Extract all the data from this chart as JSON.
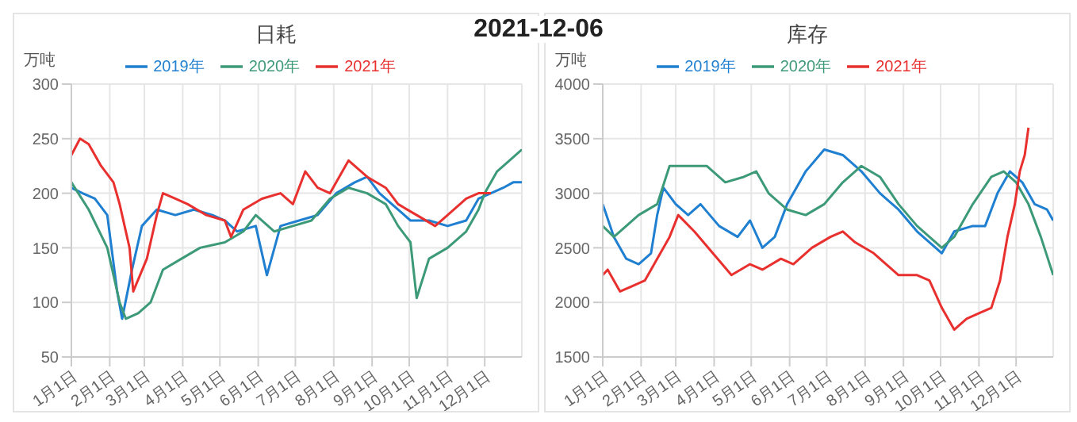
{
  "chart_data": [
    {
      "type": "line",
      "title": "日耗",
      "ylabel": "万吨",
      "annotations": [
        "2021-12-06"
      ],
      "legend": "top",
      "grid": true,
      "marker": "none",
      "line_style": "solid",
      "xlim": [
        "--01-01",
        "--12-31"
      ],
      "xticks": [
        {
          "value": "--01-01",
          "label": "1月1日"
        },
        {
          "value": "--02-01",
          "label": "2月1日"
        },
        {
          "value": "--03-01",
          "label": "3月1日"
        },
        {
          "value": "--04-01",
          "label": "4月1日"
        },
        {
          "value": "--05-01",
          "label": "5月1日"
        },
        {
          "value": "--06-01",
          "label": "6月1日"
        },
        {
          "value": "--07-01",
          "label": "7月1日"
        },
        {
          "value": "--08-01",
          "label": "8月1日"
        },
        {
          "value": "--09-01",
          "label": "9月1日"
        },
        {
          "value": "--10-01",
          "label": "10月1日"
        },
        {
          "value": "--11-01",
          "label": "11月1日"
        },
        {
          "value": "--12-01",
          "label": "12月1日"
        }
      ],
      "ylim": [
        50,
        300
      ],
      "yticks": [
        50,
        100,
        150,
        200,
        250,
        300
      ],
      "series": [
        {
          "name": "2019年",
          "color": "#1f7fd0",
          "x": [
            "--01-01",
            "--01-10",
            "--01-20",
            "--01-30",
            "--02-07",
            "--02-11",
            "--02-19",
            "--02-27",
            "--03-11",
            "--03-26",
            "--04-10",
            "--04-25",
            "--05-05",
            "--05-15",
            "--05-30",
            "--06-08",
            "--06-19",
            "--07-04",
            "--07-19",
            "--08-03",
            "--08-18",
            "--08-28",
            "--09-07",
            "--09-17",
            "--10-02",
            "--10-17",
            "--11-01",
            "--11-16",
            "--11-26",
            "--12-06",
            "--12-16",
            "--12-24",
            "--12-31"
          ],
          "values": [
            205,
            200,
            195,
            180,
            110,
            85,
            130,
            170,
            185,
            180,
            185,
            180,
            175,
            165,
            170,
            125,
            170,
            175,
            180,
            200,
            210,
            215,
            200,
            190,
            175,
            175,
            170,
            175,
            195,
            200,
            205,
            210,
            210
          ]
        },
        {
          "name": "2020年",
          "color": "#3d9a78",
          "x": [
            "--01-01",
            "--01-15",
            "--01-30",
            "--02-09",
            "--02-14",
            "--02-24",
            "--03-06",
            "--03-16",
            "--03-31",
            "--04-15",
            "--05-05",
            "--05-20",
            "--05-30",
            "--06-14",
            "--06-29",
            "--07-14",
            "--07-29",
            "--08-13",
            "--08-28",
            "--09-12",
            "--09-22",
            "--10-02",
            "--10-07",
            "--10-17",
            "--11-01",
            "--11-16",
            "--11-26",
            "--12-01",
            "--12-11",
            "--12-21",
            "--12-31"
          ],
          "values": [
            210,
            185,
            150,
            100,
            85,
            90,
            100,
            130,
            140,
            150,
            155,
            165,
            180,
            165,
            170,
            175,
            195,
            205,
            200,
            190,
            170,
            155,
            104,
            140,
            150,
            165,
            185,
            200,
            220,
            230,
            240
          ]
        },
        {
          "name": "2021年",
          "color": "#e8302e",
          "x": [
            "--01-01",
            "--01-08",
            "--01-15",
            "--01-25",
            "--02-04",
            "--02-09",
            "--02-17",
            "--02-20",
            "--03-03",
            "--03-11",
            "--03-16",
            "--03-26",
            "--04-05",
            "--04-20",
            "--05-05",
            "--05-10",
            "--05-20",
            "--06-04",
            "--06-19",
            "--06-29",
            "--07-09",
            "--07-19",
            "--07-29",
            "--08-13",
            "--08-28",
            "--09-12",
            "--09-22",
            "--10-07",
            "--10-22",
            "--11-01",
            "--11-16",
            "--11-26",
            "--12-06"
          ],
          "values": [
            235,
            250,
            245,
            225,
            210,
            190,
            150,
            110,
            140,
            180,
            200,
            195,
            190,
            180,
            175,
            160,
            185,
            195,
            200,
            190,
            220,
            205,
            200,
            230,
            215,
            205,
            190,
            180,
            170,
            180,
            195,
            200,
            200
          ]
        }
      ]
    },
    {
      "type": "line",
      "title": "库存",
      "ylabel": "万吨",
      "legend": "top",
      "grid": true,
      "marker": "none",
      "line_style": "solid",
      "xlim": [
        "--01-01",
        "--12-31"
      ],
      "xticks": [
        {
          "value": "--01-01",
          "label": "1月1日"
        },
        {
          "value": "--02-01",
          "label": "2月1日"
        },
        {
          "value": "--03-01",
          "label": "3月1日"
        },
        {
          "value": "--04-01",
          "label": "4月1日"
        },
        {
          "value": "--05-01",
          "label": "5月1日"
        },
        {
          "value": "--06-01",
          "label": "6月1日"
        },
        {
          "value": "--07-01",
          "label": "7月1日"
        },
        {
          "value": "--08-01",
          "label": "8月1日"
        },
        {
          "value": "--09-01",
          "label": "9月1日"
        },
        {
          "value": "--10-01",
          "label": "10月1日"
        },
        {
          "value": "--11-01",
          "label": "11月1日"
        },
        {
          "value": "--12-01",
          "label": "12月1日"
        }
      ],
      "ylim": [
        1500,
        4000
      ],
      "yticks": [
        1500,
        2000,
        2500,
        3000,
        3500,
        4000
      ],
      "series": [
        {
          "name": "2019年",
          "color": "#1f7fd0",
          "x": [
            "--01-01",
            "--01-10",
            "--01-20",
            "--01-30",
            "--02-09",
            "--02-14",
            "--02-19",
            "--03-01",
            "--03-11",
            "--03-21",
            "--04-05",
            "--04-20",
            "--04-30",
            "--05-10",
            "--05-20",
            "--05-30",
            "--06-14",
            "--06-29",
            "--07-14",
            "--07-29",
            "--08-13",
            "--08-28",
            "--09-12",
            "--09-27",
            "--10-02",
            "--10-12",
            "--10-27",
            "--11-06",
            "--11-16",
            "--11-26",
            "--12-06",
            "--12-16",
            "--12-26",
            "--12-31"
          ],
          "values": [
            2900,
            2600,
            2400,
            2350,
            2450,
            2800,
            3050,
            2900,
            2800,
            2900,
            2700,
            2600,
            2750,
            2500,
            2600,
            2900,
            3200,
            3400,
            3350,
            3200,
            3000,
            2850,
            2650,
            2500,
            2450,
            2650,
            2700,
            2700,
            3000,
            3200,
            3100,
            2900,
            2850,
            2750
          ]
        },
        {
          "name": "2020年",
          "color": "#3d9a78",
          "x": [
            "--01-01",
            "--01-10",
            "--01-20",
            "--01-30",
            "--02-14",
            "--02-24",
            "--03-11",
            "--03-26",
            "--04-10",
            "--04-25",
            "--05-05",
            "--05-15",
            "--05-30",
            "--06-14",
            "--06-29",
            "--07-14",
            "--07-29",
            "--08-13",
            "--08-28",
            "--09-12",
            "--09-22",
            "--10-02",
            "--10-12",
            "--10-27",
            "--11-11",
            "--11-21",
            "--12-01",
            "--12-11",
            "--12-21",
            "--12-31"
          ],
          "values": [
            2700,
            2600,
            2700,
            2800,
            2900,
            3250,
            3250,
            3250,
            3100,
            3150,
            3200,
            3000,
            2850,
            2800,
            2900,
            3100,
            3250,
            3150,
            2900,
            2700,
            2600,
            2500,
            2600,
            2900,
            3150,
            3200,
            3100,
            2900,
            2600,
            2250
          ]
        },
        {
          "name": "2021年",
          "color": "#e8302e",
          "x": [
            "--01-01",
            "--01-05",
            "--01-15",
            "--01-25",
            "--02-04",
            "--02-14",
            "--02-24",
            "--03-03",
            "--03-16",
            "--03-31",
            "--04-15",
            "--04-30",
            "--05-10",
            "--05-25",
            "--06-04",
            "--06-19",
            "--07-04",
            "--07-14",
            "--07-24",
            "--08-08",
            "--08-28",
            "--09-12",
            "--09-22",
            "--10-02",
            "--10-12",
            "--10-22",
            "--11-01",
            "--11-11",
            "--11-18",
            "--11-24",
            "--11-30",
            "--12-04",
            "--12-08",
            "--12-11"
          ],
          "values": [
            2250,
            2300,
            2100,
            2150,
            2200,
            2400,
            2600,
            2800,
            2650,
            2450,
            2250,
            2350,
            2300,
            2400,
            2350,
            2500,
            2600,
            2650,
            2550,
            2450,
            2250,
            2250,
            2200,
            1950,
            1750,
            1850,
            1900,
            1950,
            2200,
            2600,
            2900,
            3200,
            3350,
            3600
          ]
        }
      ]
    }
  ]
}
